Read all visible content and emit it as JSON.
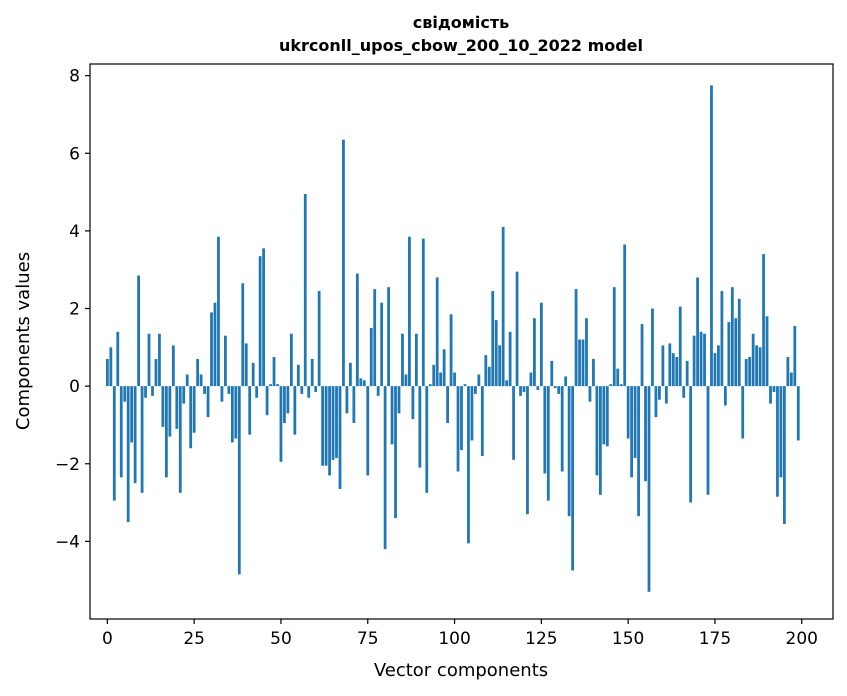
{
  "chart_data": {
    "type": "bar",
    "title": "свідомість",
    "subtitle": "ukrconll_upos_cbow_200_10_2022 model",
    "xlabel": "Vector components",
    "ylabel": "Components values",
    "xlim": [
      -5,
      209
    ],
    "ylim": [
      -6.0,
      8.3
    ],
    "x_ticks": [
      0,
      25,
      50,
      75,
      100,
      125,
      150,
      175,
      200
    ],
    "x_tick_labels": [
      "0",
      "25",
      "50",
      "75",
      "100",
      "125",
      "150",
      "175",
      "200"
    ],
    "y_ticks": [
      -4,
      -2,
      0,
      2,
      4,
      6,
      8
    ],
    "y_tick_labels": [
      "−4",
      "−2",
      "0",
      "2",
      "4",
      "6",
      "8"
    ],
    "bar_color": "#1f77b4",
    "grid": false,
    "values": [
      0.7,
      1.0,
      -2.95,
      1.4,
      -2.35,
      -0.4,
      -3.5,
      -1.45,
      -2.5,
      2.85,
      -2.75,
      -0.3,
      1.35,
      -0.25,
      0.7,
      1.35,
      -1.05,
      -2.35,
      -1.3,
      1.05,
      -1.1,
      -2.75,
      -0.45,
      0.3,
      -1.6,
      -1.2,
      0.7,
      0.3,
      -0.2,
      -0.8,
      1.9,
      2.15,
      3.85,
      -0.4,
      1.3,
      -0.2,
      -1.45,
      -1.35,
      -4.85,
      2.65,
      1.1,
      -1.25,
      0.6,
      -0.3,
      3.35,
      3.55,
      -0.75,
      0.05,
      0.75,
      0.05,
      -1.95,
      -0.95,
      -0.7,
      1.35,
      -1.25,
      0.55,
      -0.2,
      4.95,
      -0.3,
      0.7,
      -0.15,
      2.45,
      -2.05,
      -2.05,
      -2.3,
      -1.9,
      -1.85,
      -2.65,
      6.35,
      -0.7,
      0.6,
      -0.95,
      2.9,
      0.2,
      0.15,
      -2.3,
      1.5,
      2.5,
      -0.25,
      2.15,
      -4.2,
      2.55,
      -1.5,
      -3.4,
      -0.7,
      1.35,
      0.3,
      3.85,
      -0.85,
      1.35,
      -2.1,
      3.8,
      -2.75,
      0.05,
      0.55,
      2.8,
      0.35,
      0.95,
      -0.95,
      1.85,
      0.35,
      -2.2,
      -1.65,
      0.05,
      -4.05,
      -1.4,
      -0.2,
      0.3,
      -1.8,
      0.8,
      0.5,
      2.45,
      1.7,
      1.05,
      4.1,
      0.15,
      1.4,
      -1.9,
      2.95,
      -0.25,
      -0.15,
      -3.3,
      0.35,
      1.75,
      -0.1,
      2.15,
      -2.25,
      -2.95,
      0.65,
      -0.05,
      -0.2,
      -2.2,
      0.25,
      -3.35,
      -4.75,
      2.5,
      1.2,
      1.2,
      1.75,
      -0.4,
      0.7,
      -2.3,
      -2.8,
      -1.5,
      -1.55,
      0.05,
      2.55,
      0.45,
      0.05,
      3.65,
      -1.35,
      -2.35,
      -1.85,
      -3.35,
      1.6,
      -2.45,
      -5.3,
      2.0,
      -0.8,
      -0.35,
      1.05,
      -0.45,
      1.1,
      0.85,
      0.75,
      2.05,
      -0.3,
      0.65,
      -3.0,
      1.3,
      2.8,
      1.4,
      1.35,
      -2.8,
      7.75,
      0.85,
      1.05,
      2.45,
      -0.5,
      1.65,
      2.55,
      1.75,
      2.25,
      -1.35,
      0.7,
      0.75,
      1.35,
      1.05,
      1.0,
      3.4,
      1.8,
      -0.45,
      -0.15,
      -2.85,
      -2.35,
      -3.55,
      0.75,
      0.35,
      1.55,
      -1.4
    ]
  }
}
